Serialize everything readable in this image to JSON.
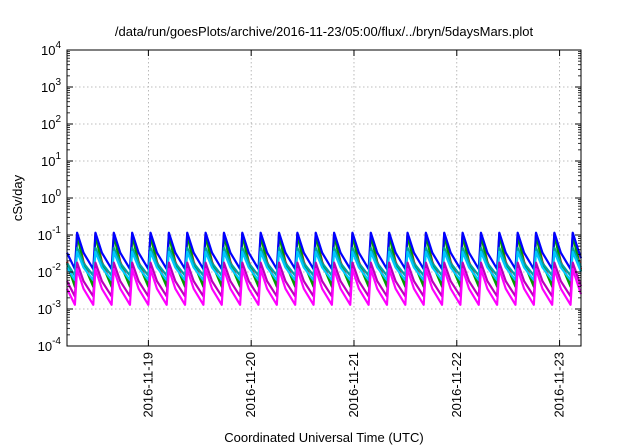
{
  "chart_data": {
    "type": "line",
    "title": "/data/run/goesPlots/archive/2016-11-23/05:00/flux/../bryn/5daysMars.plot",
    "xlabel": "Coordinated Universal Time (UTC)",
    "ylabel": "cSv/day",
    "y_scale": "log",
    "ylim": [
      0.0001,
      10000
    ],
    "y_ticks": [
      {
        "base": "10",
        "exp": "4"
      },
      {
        "base": "10",
        "exp": "3"
      },
      {
        "base": "10",
        "exp": "2"
      },
      {
        "base": "10",
        "exp": "1"
      },
      {
        "base": "10",
        "exp": "0"
      },
      {
        "base": "10",
        "exp": "-1"
      },
      {
        "base": "10",
        "exp": "-2"
      },
      {
        "base": "10",
        "exp": "-3"
      },
      {
        "base": "10",
        "exp": "-4"
      }
    ],
    "xlim": [
      "2016-11-18 05:00",
      "2016-11-23 05:00"
    ],
    "x_ticks": [
      "2016-11-19",
      "2016-11-20",
      "2016-11-21",
      "2016-11-22",
      "2016-11-23"
    ],
    "grid": true,
    "cycles_per_day": 5.6,
    "series": [
      {
        "color": "#ff0000",
        "peak": 0.11,
        "trough": 0.0045
      },
      {
        "color": "#009e00",
        "peak": 0.1,
        "trough": 0.004
      },
      {
        "color": "#0000ff",
        "peak": 0.115,
        "trough": 0.012
      },
      {
        "color": "#00a0a0",
        "peak": 0.045,
        "trough": 0.008
      },
      {
        "color": "#00c8ff",
        "peak": 0.035,
        "trough": 0.006
      },
      {
        "color": "#bb00bb",
        "peak": 0.018,
        "trough": 0.0022
      },
      {
        "color": "#ff00ff",
        "peak": 0.012,
        "trough": 0.0013
      }
    ]
  }
}
